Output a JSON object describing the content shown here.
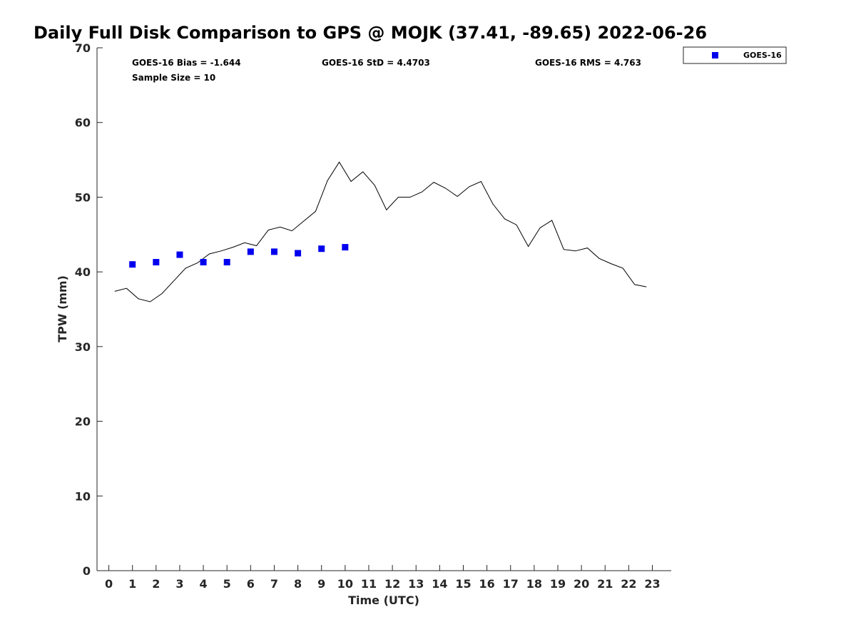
{
  "chart_data": {
    "type": "line",
    "title": "Daily Full Disk Comparison to GPS @ MOJK (37.41, -89.65) 2022-06-26",
    "xlabel": "Time (UTC)",
    "ylabel": "TPW (mm)",
    "xlim": [
      -0.5,
      23.8
    ],
    "ylim": [
      0,
      70
    ],
    "xticks": [
      "0",
      "1",
      "2",
      "3",
      "4",
      "5",
      "6",
      "7",
      "8",
      "9",
      "10",
      "11",
      "12",
      "13",
      "14",
      "15",
      "16",
      "17",
      "18",
      "19",
      "20",
      "21",
      "22",
      "23"
    ],
    "yticks": [
      "0",
      "10",
      "20",
      "30",
      "40",
      "50",
      "60",
      "70"
    ],
    "grid": false,
    "legend_position": "top-right (outside plot)",
    "stats": [
      "GOES-16 Bias = -1.644",
      "GOES-16 StD = 4.4703",
      "GOES-16 RMS = 4.763",
      "Sample Size = 10"
    ],
    "series": [
      {
        "style": "line",
        "color": "#000000",
        "x": [
          0.25,
          0.75,
          1.25,
          1.75,
          2.25,
          2.75,
          3.25,
          3.75,
          4.25,
          4.75,
          5.25,
          5.75,
          6.25,
          6.75,
          7.25,
          7.75,
          8.25,
          8.75,
          9.25,
          9.75,
          10.25,
          10.75,
          11.25,
          11.75,
          12.25,
          12.75,
          13.25,
          13.75,
          14.25,
          14.75,
          15.25,
          15.75,
          16.25,
          16.75,
          17.25,
          17.75,
          18.25,
          18.75,
          19.25,
          19.75,
          20.25,
          20.75,
          21.25,
          21.75,
          22.25,
          22.75
        ],
        "y": [
          37.4,
          37.8,
          36.4,
          36.0,
          37.1,
          38.8,
          40.5,
          41.2,
          42.4,
          42.8,
          43.3,
          43.9,
          43.5,
          45.6,
          46.0,
          45.5,
          46.8,
          48.1,
          52.2,
          54.7,
          52.1,
          53.4,
          51.6,
          48.3,
          50.0,
          50.0,
          50.7,
          52.0,
          51.2,
          50.1,
          51.4,
          52.1,
          49.1,
          47.1,
          46.3,
          43.4,
          45.9,
          46.9,
          43.0,
          42.8,
          43.2,
          41.8,
          41.1,
          40.5,
          38.3,
          38.0
        ]
      },
      {
        "name": "GOES-16",
        "style": "marker-square",
        "color": "#0000ee",
        "x": [
          1,
          2,
          3,
          4,
          5,
          6,
          7,
          8,
          9,
          10
        ],
        "y": [
          41.0,
          41.3,
          42.3,
          41.3,
          41.3,
          42.7,
          42.7,
          42.5,
          43.1,
          43.3
        ]
      }
    ]
  }
}
